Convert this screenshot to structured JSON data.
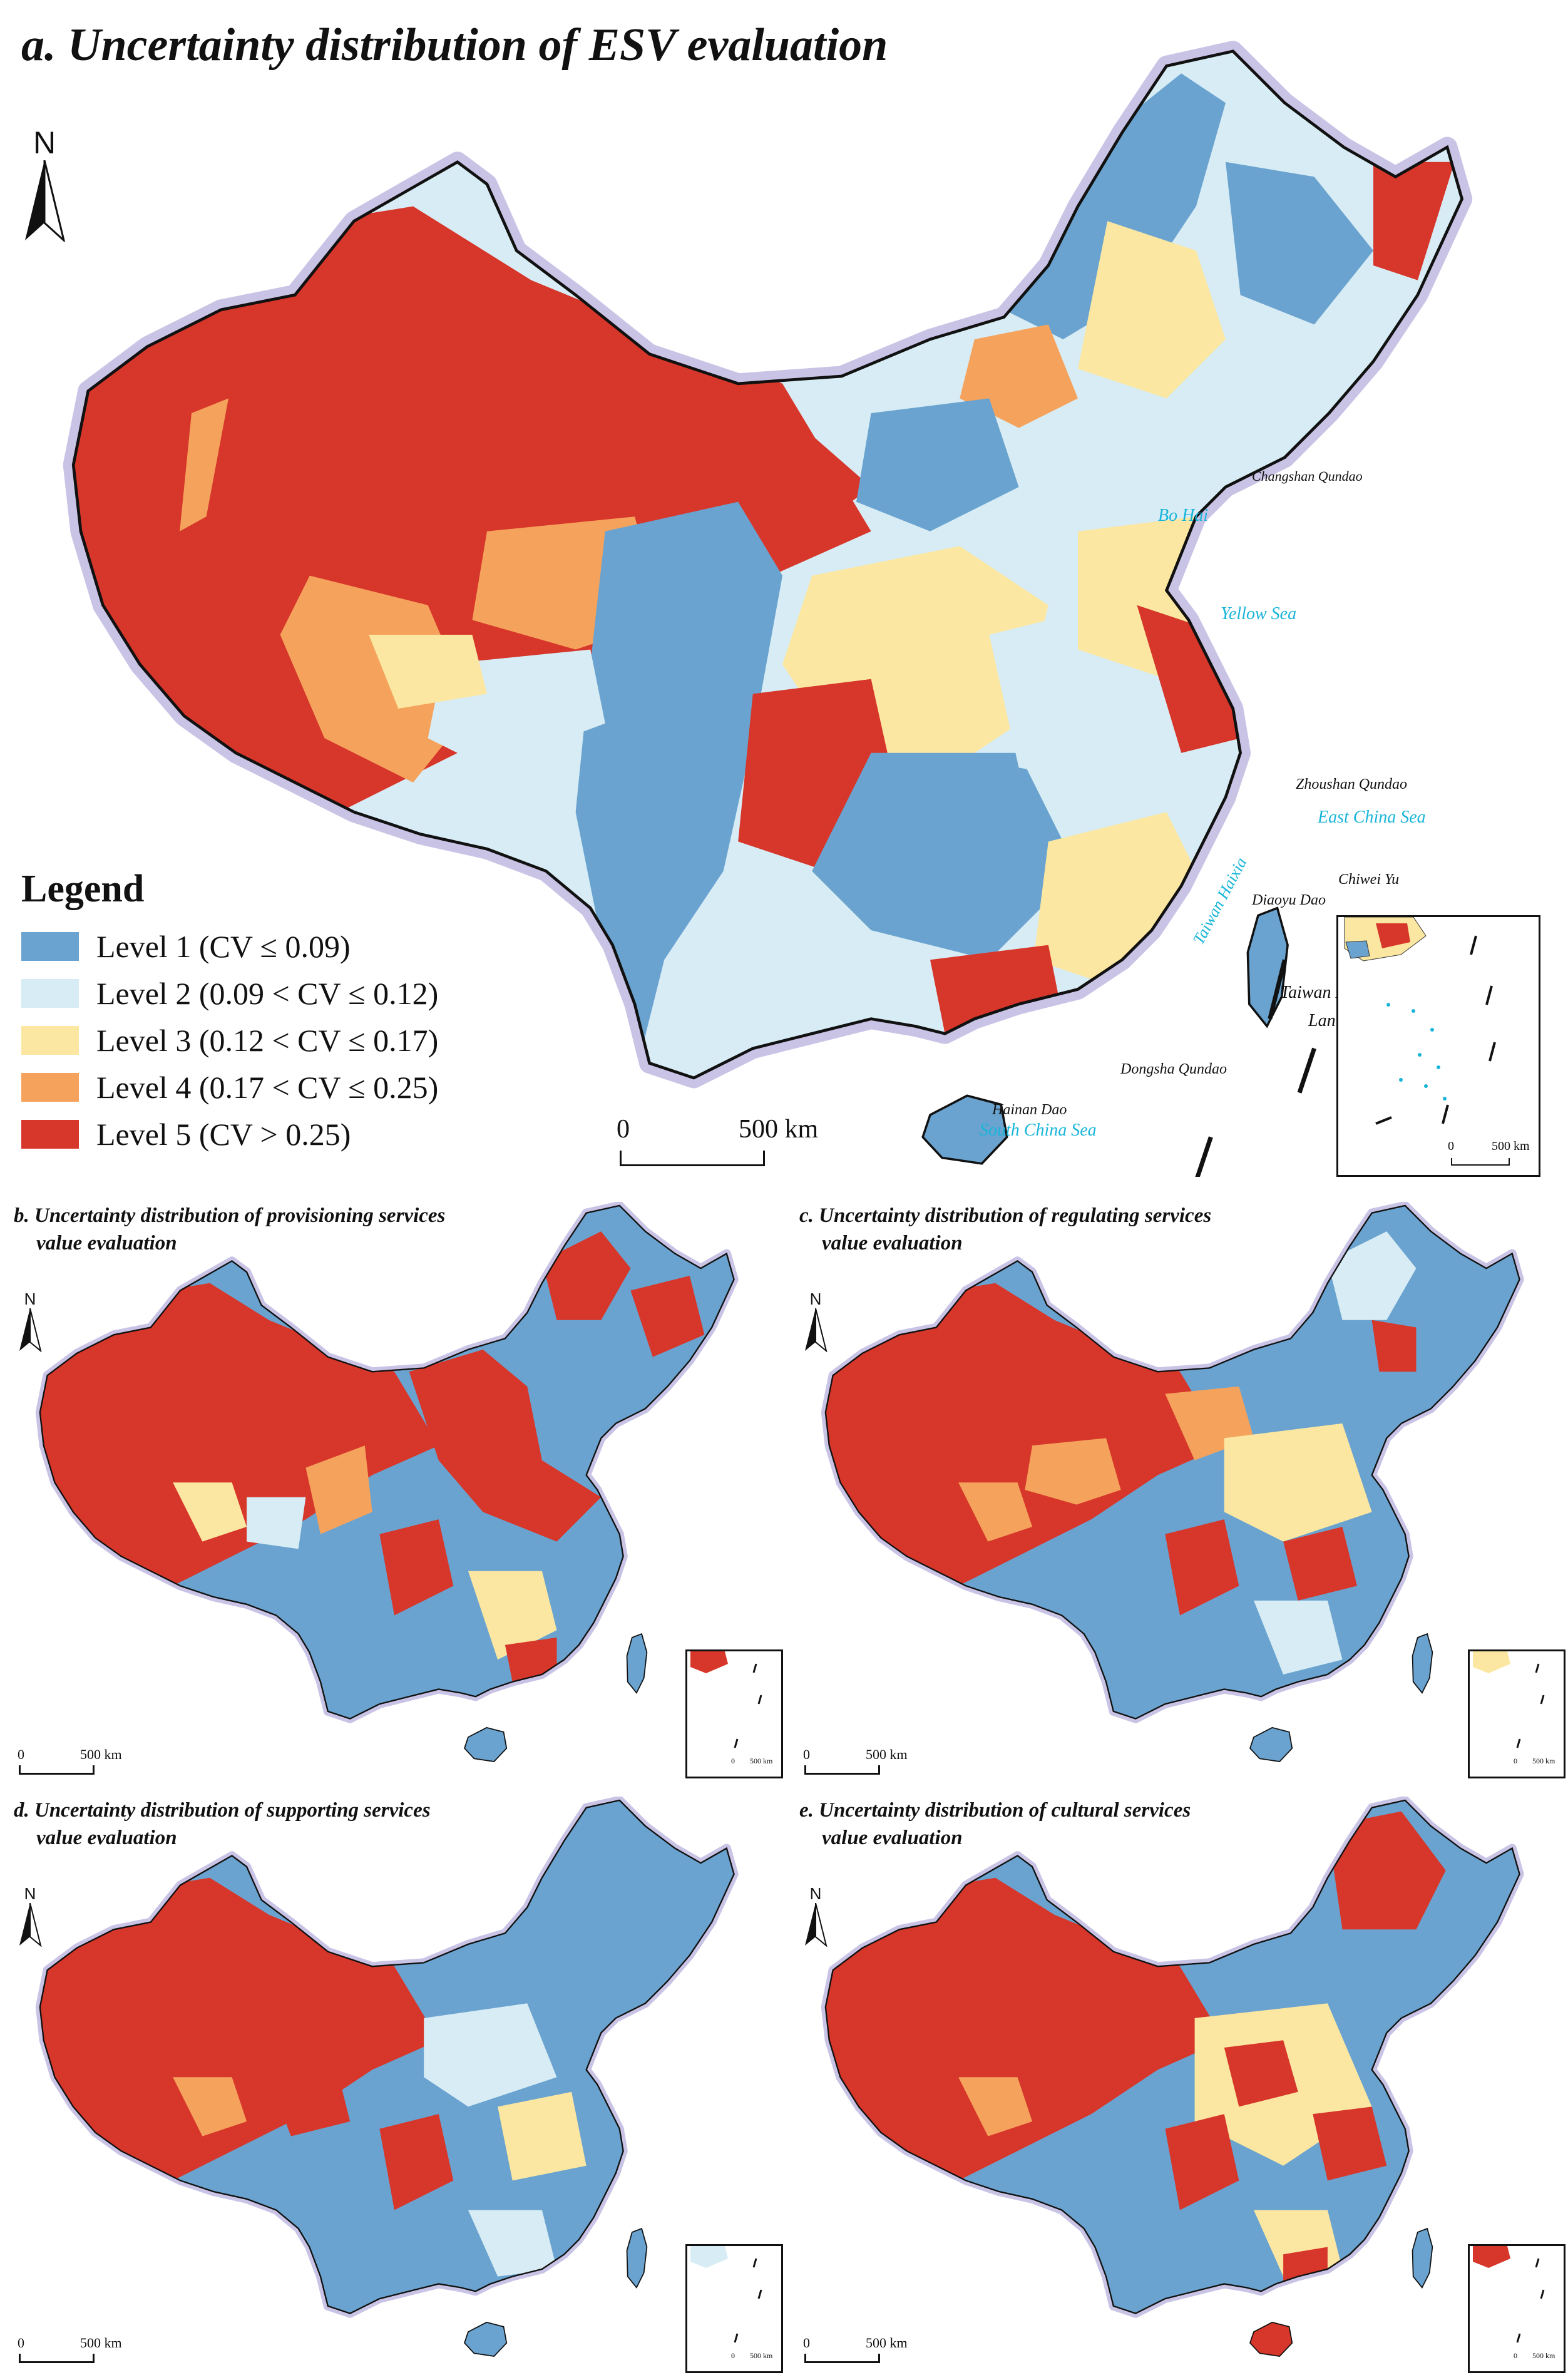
{
  "colors": {
    "level1": "#6aa3cf",
    "level2": "#d7ecf4",
    "level3": "#fbe7a1",
    "level4": "#f5a35c",
    "level5": "#d7362a",
    "sea_label": "#18b5d9",
    "halo": "#c9c4e6"
  },
  "panel_a": {
    "title": "a. Uncertainty distribution of ESV evaluation",
    "north": "N",
    "scale_zero": "0",
    "scale_label": "500 km",
    "inset_scale_zero": "0",
    "inset_scale_label": "500 km"
  },
  "legend": {
    "title": "Legend",
    "items": [
      {
        "label": "Level 1 (CV ≤ 0.09)",
        "color": "#6aa3cf"
      },
      {
        "label": "Level 2 (0.09 < CV ≤ 0.12)",
        "color": "#d7ecf4"
      },
      {
        "label": "Level 3 (0.12 < CV ≤ 0.17)",
        "color": "#fbe7a1"
      },
      {
        "label": "Level 4 (0.17 < CV ≤ 0.25)",
        "color": "#f5a35c"
      },
      {
        "label": "Level 5 (CV > 0.25)",
        "color": "#d7362a"
      }
    ]
  },
  "map_labels": {
    "seas": [
      "Bo Hai",
      "Yellow Sea",
      "East China Sea",
      "Taiwan Haixia",
      "South China Sea"
    ],
    "places": [
      "Changshan Qundao",
      "Zhoushan Qundao",
      "Chiwei Yu",
      "Diaoyu Dao",
      "Taiwan Dao",
      "Lan Yu",
      "Dongsha Qundao",
      "Hainan Dao"
    ]
  },
  "small_panels": [
    {
      "id": "b",
      "title_line1": "b. Uncertainty distribution of provisioning services",
      "title_line2": "value evaluation",
      "north": "N",
      "scale_zero": "0",
      "scale_label": "500 km",
      "inset_scale_zero": "0",
      "inset_scale_label": "500 km"
    },
    {
      "id": "c",
      "title_line1": "c. Uncertainty distribution of regulating services",
      "title_line2": "value evaluation",
      "north": "N",
      "scale_zero": "0",
      "scale_label": "500 km",
      "inset_scale_zero": "0",
      "inset_scale_label": "500 km"
    },
    {
      "id": "d",
      "title_line1": "d. Uncertainty distribution of supporting services",
      "title_line2": "value evaluation",
      "north": "N",
      "scale_zero": "0",
      "scale_label": "500 km",
      "inset_scale_zero": "0",
      "inset_scale_label": "500 km"
    },
    {
      "id": "e",
      "title_line1": "e. Uncertainty distribution of cultural services",
      "title_line2": "value evaluation",
      "north": "N",
      "scale_zero": "0",
      "scale_label": "500 km",
      "inset_scale_zero": "0",
      "inset_scale_label": "500 km"
    }
  ]
}
